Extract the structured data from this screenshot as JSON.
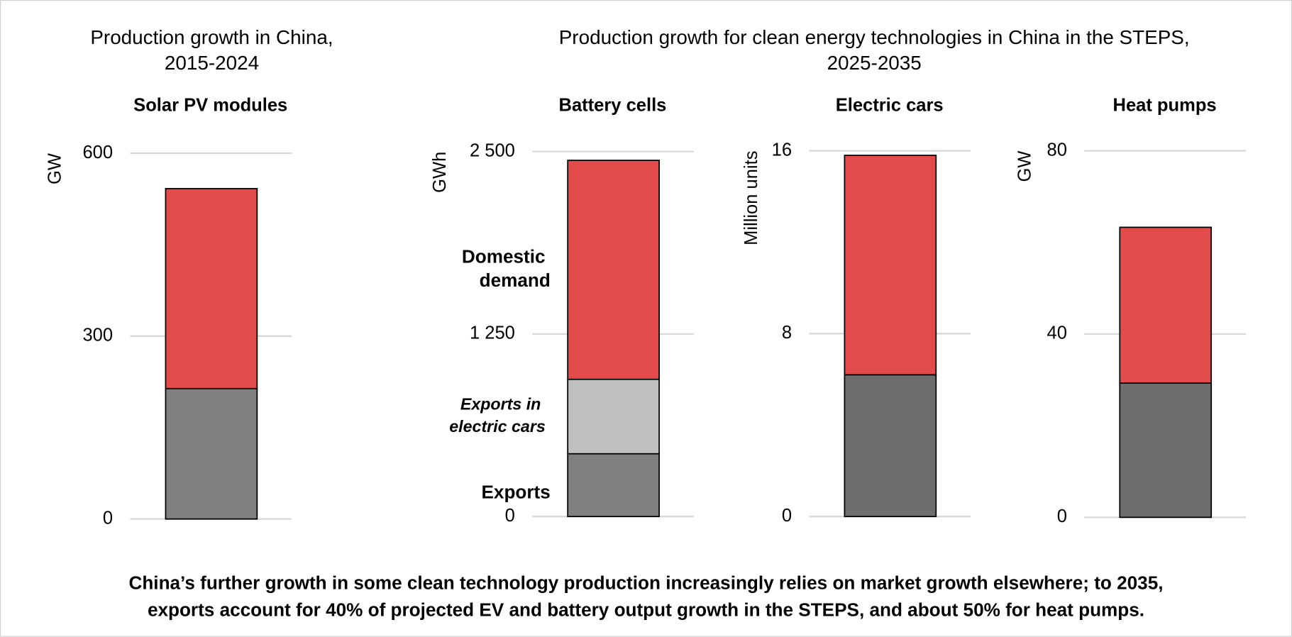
{
  "titles": {
    "left": [
      "Production growth in China,",
      "2015-2024"
    ],
    "right": [
      "Production growth for clean energy technologies in China in the STEPS,",
      "2025-2035"
    ]
  },
  "caption": [
    "China’s further growth in some clean technology production increasingly relies on market growth elsewhere; to 2035,",
    "exports account for 40% of projected EV and battery output growth in the STEPS, and about 50% for heat pumps."
  ],
  "chart_data": [
    {
      "type": "stacked_bar",
      "title": "Solar PV modules",
      "y_label": "GW",
      "ylim": [
        0,
        600
      ],
      "yticks": [
        0,
        300,
        600
      ],
      "grid": true,
      "series": [
        {
          "color": "#7f7f7f",
          "values": [
            214
          ]
        },
        {
          "color": "#e34a4a",
          "values": [
            328
          ]
        }
      ]
    },
    {
      "type": "stacked_bar",
      "title": "Battery cells",
      "y_label": "GWh",
      "ylim": [
        0,
        2500
      ],
      "yticks": [
        0,
        {
          "value": 1250,
          "label": "1 250"
        },
        {
          "value": 2500,
          "label": "2 500"
        }
      ],
      "grid": true,
      "series": [
        {
          "name": "Exports",
          "color": "#7f7f7f",
          "label_color": "#7f7f7f",
          "values": [
            430
          ]
        },
        {
          "name": "Exports in electric cars",
          "color": "#bfbfbf",
          "label_color": "#bfbfbf",
          "values": [
            510
          ]
        },
        {
          "name": "Domestic demand",
          "color": "#e34a4a",
          "label_color": "#e34a4a",
          "values": [
            1500
          ]
        }
      ]
    },
    {
      "type": "stacked_bar",
      "title": "Electric cars",
      "y_label": "Million units",
      "ylim": [
        0,
        16
      ],
      "yticks": [
        0,
        8,
        16
      ],
      "grid": true,
      "series": [
        {
          "color": "#6d6e6d",
          "values": [
            6.2
          ]
        },
        {
          "color": "#e34a4a",
          "values": [
            9.6
          ]
        }
      ]
    },
    {
      "type": "stacked_bar",
      "title": "Heat pumps",
      "y_label": "GW",
      "ylim": [
        0,
        80
      ],
      "yticks": [
        0,
        40,
        80
      ],
      "grid": true,
      "series": [
        {
          "color": "#6d6e6d",
          "values": [
            29.3
          ]
        },
        {
          "color": "#e34a4a",
          "values": [
            34
          ]
        }
      ]
    }
  ]
}
